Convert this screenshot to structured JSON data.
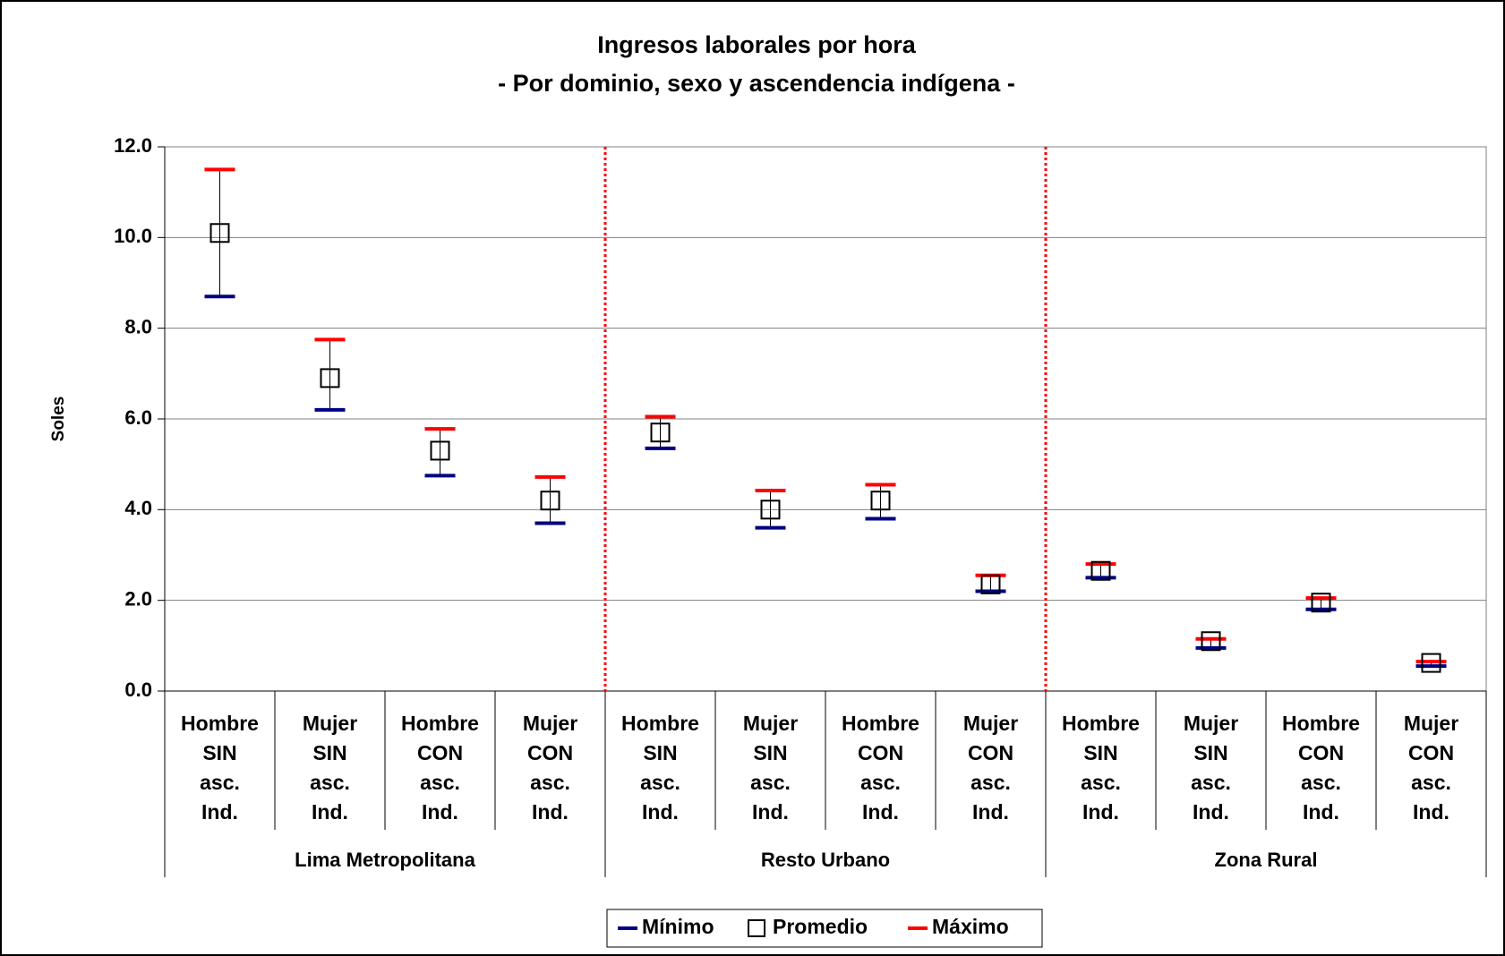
{
  "chart_data": {
    "type": "errorbar",
    "title": "Ingresos laborales por hora",
    "subtitle": "- Por dominio, sexo y ascendencia indígena -",
    "y_label": "Soles",
    "categories": [
      [
        "Hombre",
        "SIN",
        "asc.",
        "Ind."
      ],
      [
        "Mujer",
        "SIN",
        "asc.",
        "Ind."
      ],
      [
        "Hombre",
        "CON",
        "asc.",
        "Ind."
      ],
      [
        "Mujer",
        "CON",
        "asc.",
        "Ind."
      ],
      [
        "Hombre",
        "SIN",
        "asc.",
        "Ind."
      ],
      [
        "Mujer",
        "SIN",
        "asc.",
        "Ind."
      ],
      [
        "Hombre",
        "CON",
        "asc.",
        "Ind."
      ],
      [
        "Mujer",
        "CON",
        "asc.",
        "Ind."
      ],
      [
        "Hombre",
        "SIN",
        "asc.",
        "Ind."
      ],
      [
        "Mujer",
        "SIN",
        "asc.",
        "Ind."
      ],
      [
        "Hombre",
        "CON",
        "asc.",
        "Ind."
      ],
      [
        "Mujer",
        "CON",
        "asc.",
        "Ind."
      ]
    ],
    "groups": [
      "Lima Metropolitana",
      "Resto Urbano",
      "Zona Rural"
    ],
    "series": [
      {
        "name": "Mínimo",
        "color": "#000080",
        "values": [
          8.7,
          6.2,
          4.75,
          3.7,
          5.35,
          3.6,
          3.8,
          2.2,
          2.5,
          0.95,
          1.8,
          0.55
        ]
      },
      {
        "name": "Promedio",
        "color": "#000000",
        "values": [
          10.1,
          6.9,
          5.3,
          4.2,
          5.7,
          4.0,
          4.2,
          2.35,
          2.65,
          1.1,
          1.95,
          0.62
        ]
      },
      {
        "name": "Máximo",
        "color": "#ff0000",
        "values": [
          11.5,
          7.75,
          5.78,
          4.72,
          6.05,
          4.42,
          4.55,
          2.55,
          2.8,
          1.15,
          2.05,
          0.65
        ]
      }
    ],
    "ylim": [
      0,
      12
    ],
    "yticks": [
      {
        "value": 0,
        "label": "0.0"
      },
      {
        "value": 2,
        "label": "2.0"
      },
      {
        "value": 4,
        "label": "4.0"
      },
      {
        "value": 6,
        "label": "6.0"
      },
      {
        "value": 8,
        "label": "8.0"
      },
      {
        "value": 10,
        "label": "10.0"
      },
      {
        "value": 12,
        "label": "12.0"
      }
    ],
    "grid": true,
    "legend": "bottom"
  }
}
